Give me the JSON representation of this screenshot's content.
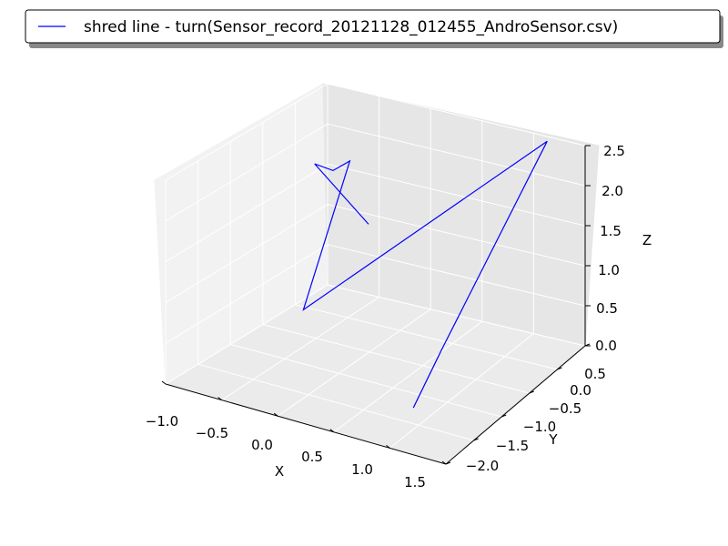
{
  "chart_data": {
    "type": "line",
    "projection": "3d",
    "title": "",
    "xlabel": "X",
    "ylabel": "Y",
    "zlabel": "Z",
    "xlim": [
      -1.0,
      1.5
    ],
    "ylim": [
      -2.0,
      0.5
    ],
    "zlim": [
      0.0,
      2.5
    ],
    "xticks": [
      "−1.0",
      "−0.5",
      "0.0",
      "0.5",
      "1.0",
      "1.5"
    ],
    "yticks": [
      "−2.0",
      "−1.5",
      "−1.0",
      "−0.5",
      "0.0",
      "0.5"
    ],
    "zticks": [
      "0.0",
      "0.5",
      "1.0",
      "1.5",
      "2.0",
      "2.5"
    ],
    "grid": true,
    "legend_position": "top",
    "series": [
      {
        "name": "shred line - turn(Sensor_record_20121128_012455_AndroSensor.csv)",
        "color": "#0000ff",
        "points": [
          {
            "x": 0.9,
            "y": -1.4,
            "z": 0.1
          },
          {
            "x": 1.0,
            "y": -1.1,
            "z": 0.6
          },
          {
            "x": 1.35,
            "y": 0.1,
            "z": 2.6
          },
          {
            "x": -0.8,
            "y": -0.2,
            "z": 0.1
          },
          {
            "x": -0.6,
            "y": 0.2,
            "z": 1.8
          },
          {
            "x": -0.7,
            "y": 0.1,
            "z": 1.7
          },
          {
            "x": -1.0,
            "y": 0.3,
            "z": 1.6
          },
          {
            "x": -0.3,
            "y": 0.0,
            "z": 1.2
          }
        ]
      }
    ]
  }
}
